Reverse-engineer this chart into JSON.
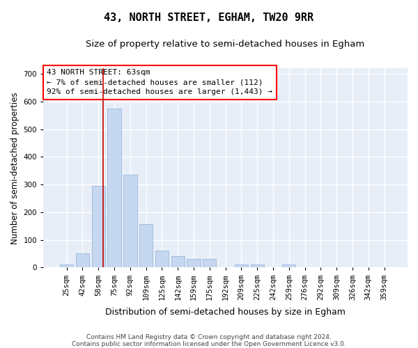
{
  "title": "43, NORTH STREET, EGHAM, TW20 9RR",
  "subtitle": "Size of property relative to semi-detached houses in Egham",
  "xlabel": "Distribution of semi-detached houses by size in Egham",
  "ylabel": "Number of semi-detached properties",
  "footnote1": "Contains HM Land Registry data © Crown copyright and database right 2024.",
  "footnote2": "Contains public sector information licensed under the Open Government Licence v3.0.",
  "annotation_title": "43 NORTH STREET: 63sqm",
  "annotation_line1": "← 7% of semi-detached houses are smaller (112)",
  "annotation_line2": "92% of semi-detached houses are larger (1,443) →",
  "bar_color": "#c5d8f0",
  "bar_edgecolor": "#9ab8dc",
  "vline_color": "#cc0000",
  "background_color": "#e8eef8",
  "categories": [
    "25sqm",
    "42sqm",
    "58sqm",
    "75sqm",
    "92sqm",
    "109sqm",
    "125sqm",
    "142sqm",
    "159sqm",
    "175sqm",
    "192sqm",
    "209sqm",
    "225sqm",
    "242sqm",
    "259sqm",
    "276sqm",
    "292sqm",
    "309sqm",
    "326sqm",
    "342sqm",
    "359sqm"
  ],
  "values": [
    10,
    50,
    295,
    575,
    335,
    158,
    62,
    40,
    30,
    30,
    0,
    12,
    12,
    0,
    12,
    0,
    0,
    0,
    0,
    0,
    0
  ],
  "ylim": [
    0,
    720
  ],
  "yticks": [
    0,
    100,
    200,
    300,
    400,
    500,
    600,
    700
  ],
  "vline_x": 2.3,
  "title_fontsize": 11,
  "subtitle_fontsize": 9.5,
  "tick_fontsize": 7.5,
  "ylabel_fontsize": 8.5,
  "xlabel_fontsize": 9,
  "annot_fontsize": 8,
  "footnote_fontsize": 6.5
}
